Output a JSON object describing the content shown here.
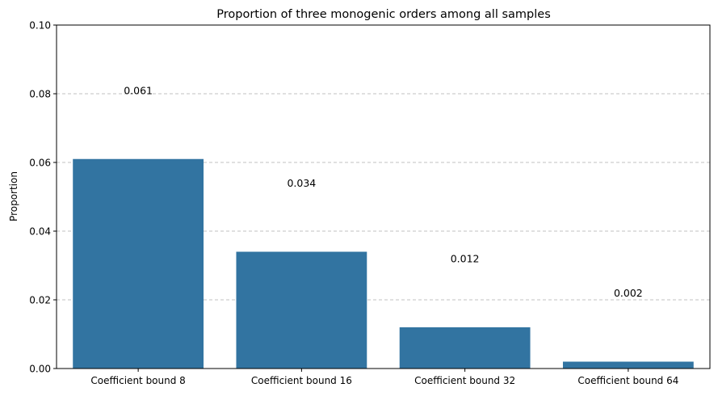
{
  "chart_data": {
    "type": "bar",
    "title": "Proportion of three monogenic orders among all samples",
    "xlabel": "",
    "ylabel": "Proportion",
    "categories": [
      "Coefficient bound 8",
      "Coefficient bound 16",
      "Coefficient bound 32",
      "Coefficient bound 64"
    ],
    "values": [
      0.061,
      0.034,
      0.012,
      0.002
    ],
    "data_labels": [
      "0.061",
      "0.034",
      "0.012",
      "0.002"
    ],
    "ylim": [
      0,
      0.1
    ],
    "yticks": [
      "0.00",
      "0.02",
      "0.04",
      "0.06",
      "0.08",
      "0.10"
    ],
    "ytick_values": [
      0,
      0.02,
      0.04,
      0.06,
      0.08,
      0.1
    ],
    "grid": "y-dashed",
    "legend": "none",
    "bar_color": "#3274a1",
    "grid_color": "#c0c0c0"
  }
}
